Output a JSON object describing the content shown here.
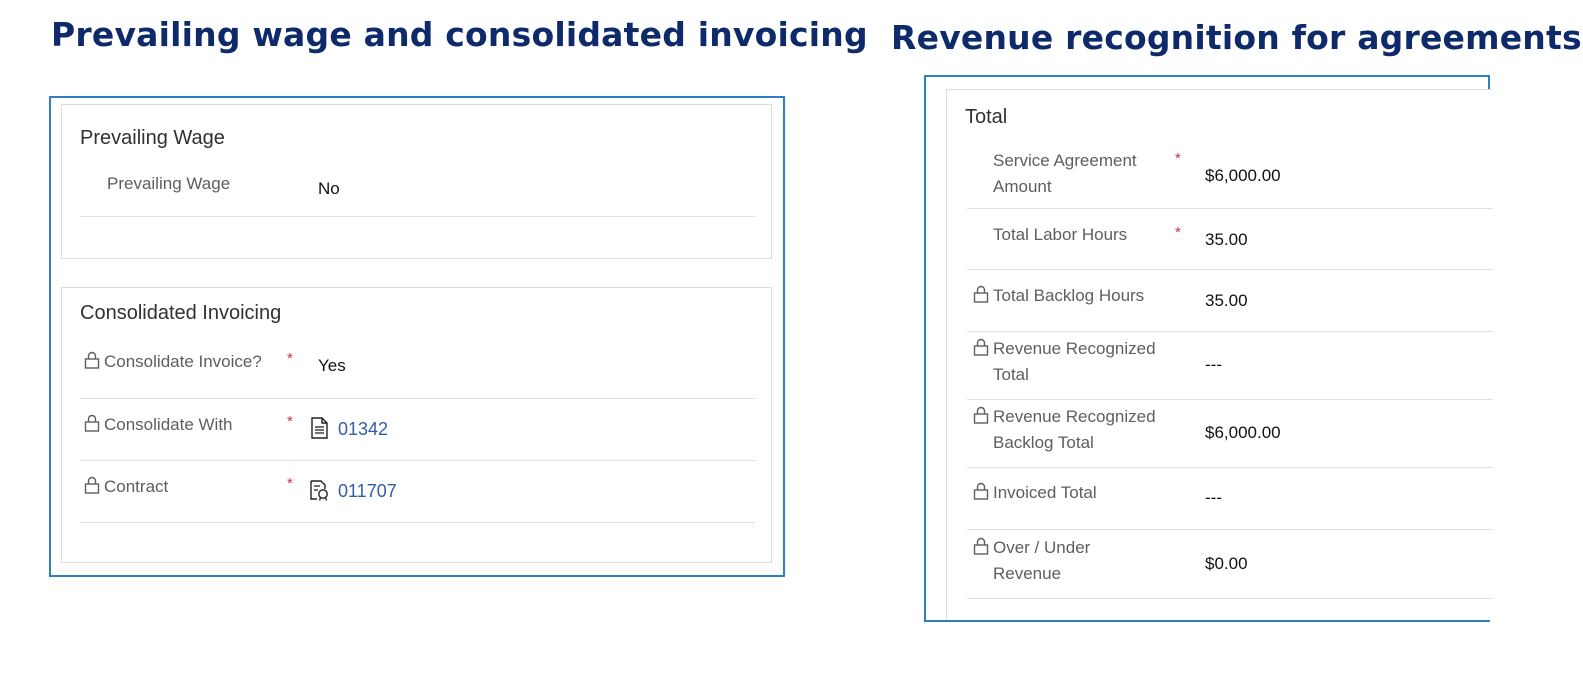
{
  "headings": {
    "left": "Prevailing wage and consolidated invoicing",
    "right": "Revenue recognition for agreements"
  },
  "prevailing_wage": {
    "section_title": "Prevailing Wage",
    "field_label": "Prevailing Wage",
    "field_value": "No"
  },
  "consolidated_invoicing": {
    "section_title": "Consolidated Invoicing",
    "rows": [
      {
        "label": "Consolidate Invoice?",
        "value": "Yes",
        "required": true,
        "locked": true
      },
      {
        "label": "Consolidate With",
        "value": "01342",
        "required": true,
        "locked": true,
        "icon": "document-icon"
      },
      {
        "label": "Contract",
        "value": "011707",
        "required": true,
        "locked": true,
        "icon": "contract-icon"
      }
    ],
    "required_mark": "*"
  },
  "total": {
    "section_title": "Total",
    "rows": [
      {
        "label_line1": "Service Agreement",
        "label_line2": "Amount",
        "value": "$6,000.00",
        "required": true,
        "locked": false
      },
      {
        "label_line1": "Total Labor Hours",
        "label_line2": "",
        "value": "35.00",
        "required": true,
        "locked": false
      },
      {
        "label_line1": "Total Backlog Hours",
        "label_line2": "",
        "value": "35.00",
        "required": false,
        "locked": true
      },
      {
        "label_line1": "Revenue Recognized",
        "label_line2": "Total",
        "value": "---",
        "required": false,
        "locked": true
      },
      {
        "label_line1": "Revenue Recognized",
        "label_line2": "Backlog Total",
        "value": "$6,000.00",
        "required": false,
        "locked": true
      },
      {
        "label_line1": "Invoiced Total",
        "label_line2": "",
        "value": "---",
        "required": false,
        "locked": true
      },
      {
        "label_line1": "Over / Under",
        "label_line2": "Revenue",
        "value": "$0.00",
        "required": false,
        "locked": true
      }
    ],
    "required_mark": "*"
  },
  "colors": {
    "heading": "#0e2a6b",
    "frame_border": "#2e7ec2",
    "link": "#2f5fa8",
    "required": "#c4314b"
  }
}
